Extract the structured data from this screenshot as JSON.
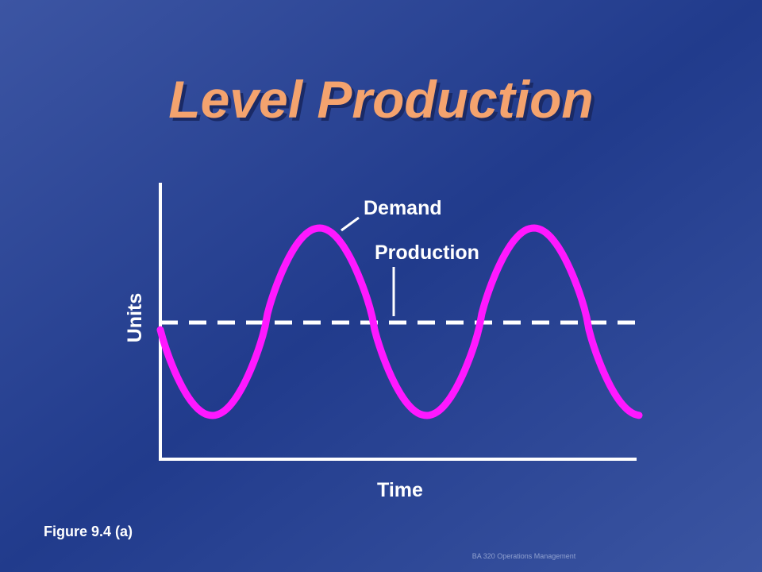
{
  "title": "Level Production",
  "diagram": {
    "labels": {
      "demand": "Demand",
      "production": "Production",
      "y_axis": "Units",
      "x_axis": "Time"
    }
  },
  "caption": "Figure 9.4 (a)",
  "footer": "BA 320 Operations Management"
}
